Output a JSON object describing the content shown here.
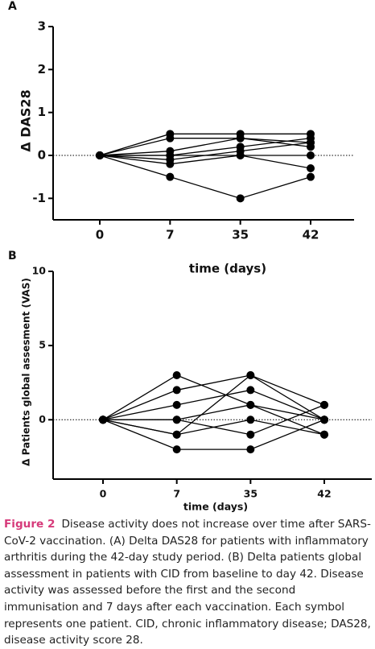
{
  "chart_data": [
    {
      "type": "line",
      "panel_label": "A",
      "y_label": "Δ DAS28",
      "x_label": "time (days)",
      "categories": [
        "0",
        "7",
        "35",
        "42"
      ],
      "ylim": [
        -1.5,
        3
      ],
      "yticks": [
        -1,
        0,
        1,
        2,
        3
      ],
      "reference_line": {
        "y": 0,
        "style": "dotted"
      },
      "color": "#000000",
      "series": [
        {
          "values": [
            0,
            0.5,
            0.5,
            0.5
          ]
        },
        {
          "values": [
            0,
            0.4,
            0.4,
            0.3
          ]
        },
        {
          "values": [
            0,
            0.1,
            0.4,
            0.2
          ]
        },
        {
          "values": [
            0,
            0,
            0.2,
            0.4
          ]
        },
        {
          "values": [
            0,
            -0.1,
            0.1,
            0.3
          ]
        },
        {
          "values": [
            0,
            -0.2,
            0,
            0
          ]
        },
        {
          "values": [
            0,
            -0.5,
            -1,
            -0.5
          ]
        },
        {
          "values": [
            0,
            0,
            0,
            -0.3
          ]
        }
      ]
    },
    {
      "type": "line",
      "panel_label": "B",
      "y_label": "Δ Patients global assesment (VAS)",
      "x_label": "time  (days)",
      "categories": [
        "0",
        "7",
        "35",
        "42"
      ],
      "ylim": [
        -4,
        10
      ],
      "yticks": [
        0,
        5,
        10
      ],
      "reference_line": {
        "y": 0,
        "style": "dotted"
      },
      "color": "#000000",
      "series": [
        {
          "values": [
            0,
            3,
            1,
            0
          ]
        },
        {
          "values": [
            0,
            2,
            3,
            1
          ]
        },
        {
          "values": [
            0,
            1,
            2,
            0
          ]
        },
        {
          "values": [
            0,
            0,
            -1,
            1
          ]
        },
        {
          "values": [
            0,
            -1,
            0,
            -1
          ]
        },
        {
          "values": [
            0,
            -2,
            -2,
            0
          ]
        },
        {
          "values": [
            0,
            0,
            1,
            -1
          ]
        },
        {
          "values": [
            0,
            -1,
            3,
            0
          ]
        }
      ]
    }
  ],
  "caption": {
    "label": "Figure 2",
    "text": "Disease activity does not increase over time after SARS-CoV-2 vaccination. (A) Delta DAS28 for patients with inflammatory arthritis during the 42-day study period. (B) Delta patients global assessment in patients with CID from baseline to day 42. Disease activity was assessed before the first and the second immunisation and 7 days after each vaccination. Each symbol represents one patient. CID, chronic inflammatory disease; DAS28, disease activity score 28."
  }
}
